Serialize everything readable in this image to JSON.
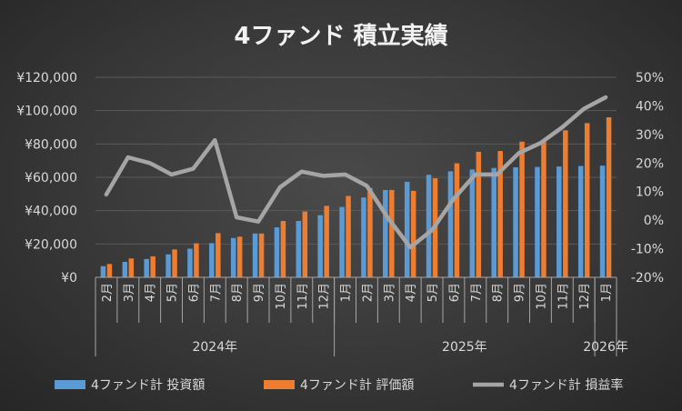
{
  "chart_data": {
    "type": "bar",
    "title": "4ファンド 積立実績",
    "categories": [
      "2月",
      "3月",
      "4月",
      "5月",
      "6月",
      "7月",
      "8月",
      "9月",
      "10月",
      "11月",
      "12月",
      "1月",
      "2月",
      "3月",
      "4月",
      "5月",
      "6月",
      "7月",
      "8月",
      "9月",
      "10月",
      "11月",
      "12月",
      "1月"
    ],
    "years": [
      {
        "label": "2024年",
        "months": 11
      },
      {
        "label": "2025年",
        "months": 12
      },
      {
        "label": "2026年",
        "months": 1
      }
    ],
    "series": [
      {
        "name": "4ファンド計 投資額",
        "type": "bar",
        "axis": "left",
        "color": "#5b9bd5",
        "values": [
          6700,
          9300,
          11000,
          13800,
          17200,
          20500,
          23600,
          26300,
          30000,
          33800,
          37300,
          42200,
          47900,
          52400,
          57300,
          61500,
          63600,
          64700,
          65600,
          66000,
          66200,
          66500,
          66800,
          67000
        ]
      },
      {
        "name": "4ファンド計 評価額",
        "type": "bar",
        "axis": "left",
        "color": "#ed7d31",
        "values": [
          8000,
          11300,
          12600,
          16700,
          20400,
          26500,
          24400,
          26300,
          33800,
          39500,
          42900,
          48800,
          53600,
          52400,
          51900,
          59400,
          68400,
          75300,
          75800,
          81400,
          81500,
          88200,
          92500,
          96000
        ]
      },
      {
        "name": "4ファンド計 損益率",
        "type": "line",
        "axis": "right",
        "color": "#a5a5a5",
        "values": [
          0.09,
          0.22,
          0.2,
          0.16,
          0.18,
          0.28,
          0.01,
          -0.005,
          0.115,
          0.17,
          0.155,
          0.16,
          0.12,
          0.005,
          -0.095,
          -0.035,
          0.075,
          0.16,
          0.16,
          0.235,
          0.27,
          0.325,
          0.39,
          0.43
        ]
      }
    ],
    "y_left": {
      "min": 0,
      "max": 120000,
      "step": 20000,
      "tick_labels": [
        "¥0",
        "¥20,000",
        "¥40,000",
        "¥60,000",
        "¥80,000",
        "¥100,000",
        "¥120,000"
      ]
    },
    "y_right": {
      "min": -0.2,
      "max": 0.5,
      "step": 0.1,
      "tick_labels": [
        "-20%",
        "-10%",
        "0%",
        "10%",
        "20%",
        "30%",
        "40%",
        "50%"
      ]
    },
    "grid": true,
    "legend_position": "bottom"
  }
}
